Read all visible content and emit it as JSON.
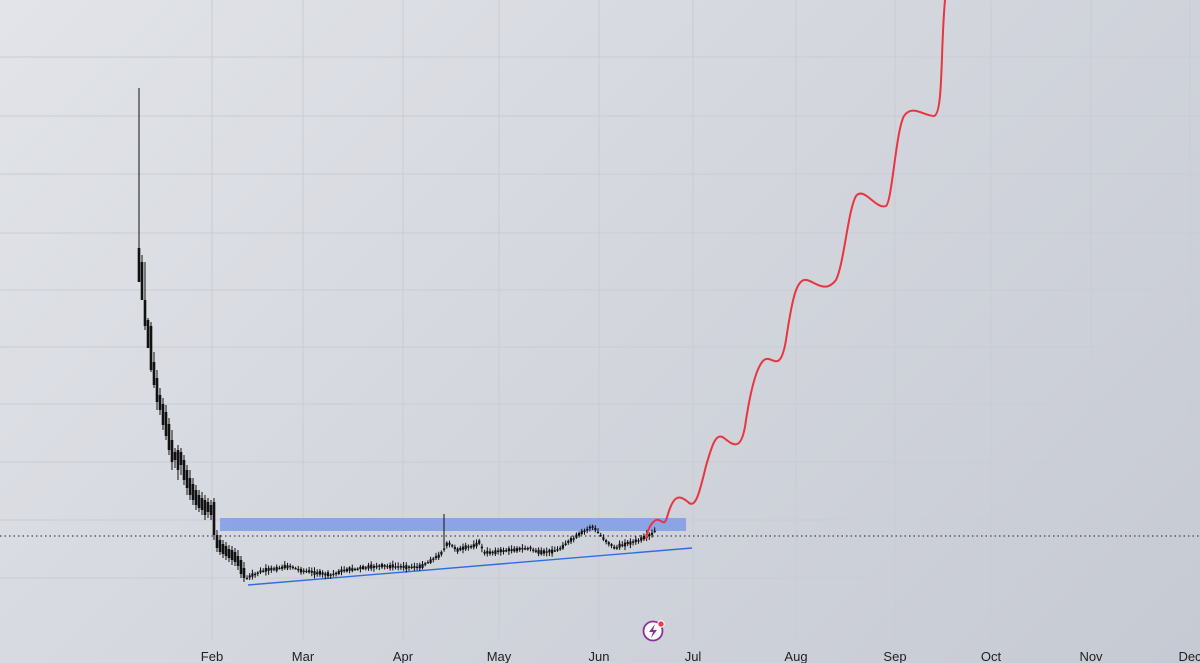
{
  "chart_data": {
    "type": "candlestick",
    "x_axis": {
      "ticks": [
        "Feb",
        "Mar",
        "Apr",
        "May",
        "Jun",
        "Jul",
        "Aug",
        "Sep",
        "Oct",
        "Nov",
        "Dec"
      ]
    },
    "grid": true,
    "y_axis_labels_visible": false,
    "candles_summary": "Sharp drop from a late-January spike, then a long sideways base from Feb through mid-June with a slight upward drift.",
    "candles": [
      {
        "date": "Jan 28",
        "o": 93,
        "h": 100,
        "l": 66,
        "c": 70
      },
      {
        "date": "Jan 29",
        "o": 70,
        "h": 73,
        "l": 58,
        "c": 60
      },
      {
        "date": "Jan 30",
        "o": 60,
        "h": 62,
        "l": 54,
        "c": 56
      },
      {
        "date": "Jan 31",
        "o": 56,
        "h": 57,
        "l": 49,
        "c": 51
      },
      {
        "date": "Feb 1",
        "o": 51,
        "h": 52,
        "l": 44,
        "c": 46
      },
      {
        "date": "Feb 2",
        "o": 46,
        "h": 48,
        "l": 40,
        "c": 42
      },
      {
        "date": "Feb 3",
        "o": 42,
        "h": 43,
        "l": 37,
        "c": 38
      },
      {
        "date": "Feb 4",
        "o": 38,
        "h": 40,
        "l": 35,
        "c": 36
      },
      {
        "date": "Feb 5",
        "o": 36,
        "h": 38,
        "l": 31,
        "c": 33
      },
      {
        "date": "Feb 6",
        "o": 33,
        "h": 34,
        "l": 28,
        "c": 30
      },
      {
        "date": "Feb 7",
        "o": 30,
        "h": 31,
        "l": 25,
        "c": 26
      },
      {
        "date": "Feb 8",
        "o": 26,
        "h": 29,
        "l": 22,
        "c": 23
      },
      {
        "date": "Feb 10",
        "o": 23,
        "h": 24,
        "l": 19,
        "c": 20
      },
      {
        "date": "Feb 12",
        "o": 20,
        "h": 21,
        "l": 17,
        "c": 18
      },
      {
        "date": "Feb 14",
        "o": 18,
        "h": 19,
        "l": 15,
        "c": 16
      },
      {
        "date": "Feb 17",
        "o": 16,
        "h": 17,
        "l": 14,
        "c": 14.5
      }
    ],
    "base_range": {
      "from": "Feb 17",
      "to": "Jun 16",
      "low": 13.5,
      "high": 20.5
    },
    "resistance_zone": {
      "from": "Feb 1",
      "to": "Jun 26",
      "low": 19.6,
      "high": 21
    },
    "horizontal_line": {
      "value": 18.6,
      "style": "dotted"
    },
    "trendline": {
      "from": {
        "date": "Feb 17",
        "value": 13.5
      },
      "to": {
        "date": "Jun 26",
        "value": 17.4
      }
    },
    "projection": {
      "color": "#e8353f",
      "description": "Hand-drawn stepwise upward projection from mid-June into September, rising off the top of the chart",
      "points": [
        {
          "date": "Jun 18",
          "value": 20
        },
        {
          "date": "Jun 22",
          "value": 22
        },
        {
          "date": "Jun 30",
          "value": 28
        },
        {
          "date": "Jul 10",
          "value": 38
        },
        {
          "date": "Jul 20",
          "value": 52
        },
        {
          "date": "Jul 31",
          "value": 68
        },
        {
          "date": "Aug 10",
          "value": 82
        },
        {
          "date": "Aug 20",
          "value": 97
        },
        {
          "date": "Aug 31",
          "value": 110
        },
        {
          "date": "Sep 10",
          "value": 125
        },
        {
          "date": "Sep 18",
          "value": 140
        }
      ]
    },
    "colors": {
      "candles": "#111111",
      "zone": "#7f9be6",
      "trendline": "#2f6ee0",
      "projection": "#e8353f",
      "grid": "#c9ccd3"
    }
  },
  "icons": {
    "lightning_badge": "lightning-icon"
  }
}
